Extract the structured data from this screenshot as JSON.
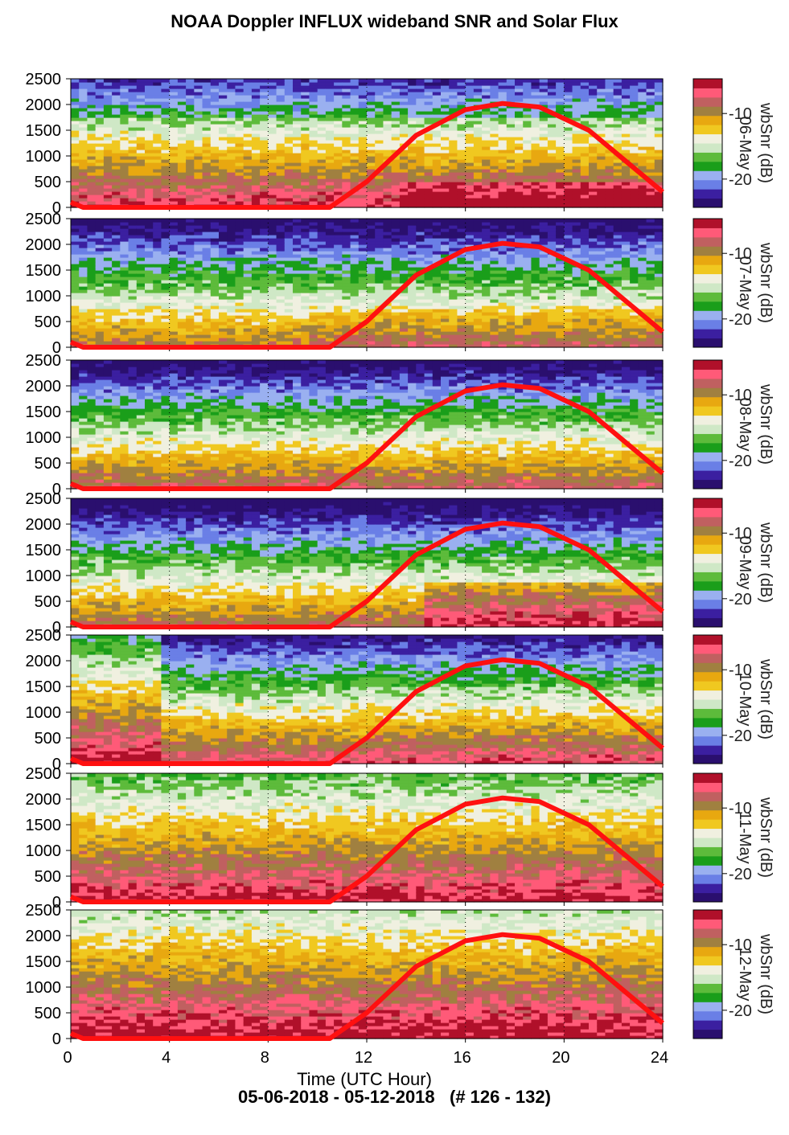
{
  "title": "NOAA Doppler INFLUX wideband SNR and Solar Flux",
  "footer": "05-06-2018 - 05-12-2018   (# 126 - 132)",
  "colors": {
    "solar_curve": "#ff1010",
    "colormap": [
      "#2a0f6e",
      "#3b1fa0",
      "#6a7fe6",
      "#9ab0f0",
      "#1a9e1a",
      "#5dbb3b",
      "#cfe8c6",
      "#f0f0e0",
      "#f0c820",
      "#e8a810",
      "#a08040",
      "#c06060",
      "#ff5a78",
      "#b0102a"
    ]
  },
  "chart_data": {
    "type": "heatmap",
    "title": "NOAA Doppler INFLUX wideband SNR and Solar Flux",
    "xlabel": "Time (UTC Hour)",
    "xlim": [
      0,
      24
    ],
    "xticks": [
      0,
      4,
      8,
      12,
      16,
      20,
      24
    ],
    "ylim": [
      0,
      2500
    ],
    "yticks": [
      0,
      500,
      1000,
      1500,
      2000,
      2500
    ],
    "grid": "vertical dotted at 4-hour intervals",
    "colorbar": {
      "label": "wbSnr (dB)",
      "ticks": [
        -10,
        -20
      ]
    },
    "solar_flux_curve": {
      "description_points_x": [
        0,
        0.5,
        10.5,
        12,
        14,
        16,
        17.5,
        19,
        21,
        22.5,
        24
      ],
      "description_points_y": [
        100,
        0,
        0,
        500,
        1400,
        1900,
        2020,
        1950,
        1500,
        900,
        300
      ]
    },
    "panels": [
      {
        "date": "06-May",
        "dominant": "yellow-brown band 500-1500, red near ground, green/purple above 1800"
      },
      {
        "date": "07-May",
        "dominant": "purple/green upper, yellow-brown 500-1200"
      },
      {
        "date": "08-May",
        "dominant": "purple upper, yellow 500-1500, pink near ground"
      },
      {
        "date": "09-May",
        "dominant": "purple upper, yellow 500-1300, red growth after 16"
      },
      {
        "date": "10-May",
        "dominant": "red low 0-800, purple/green upper, yellow dominant later"
      },
      {
        "date": "11-May",
        "dominant": "yellow 800-2200, red 0-600, green top"
      },
      {
        "date": "12-May",
        "dominant": "red 0-1200, yellow 1200-1800, blue-green top"
      }
    ]
  }
}
